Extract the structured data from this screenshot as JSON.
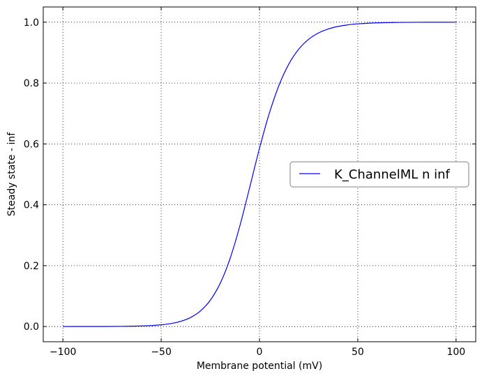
{
  "chart_data": {
    "type": "line",
    "title": "",
    "xlabel": "Membrane potential (mV)",
    "ylabel": "Steady state - inf",
    "xlim": [
      -110,
      110
    ],
    "ylim": [
      -0.05,
      1.05
    ],
    "xticks": [
      -100,
      -50,
      0,
      50,
      100
    ],
    "xtick_labels": [
      "−100",
      "−50",
      "0",
      "50",
      "100"
    ],
    "yticks": [
      0.0,
      0.2,
      0.4,
      0.6,
      0.8,
      1.0
    ],
    "ytick_labels": [
      "0.0",
      "0.2",
      "0.4",
      "0.6",
      "0.8",
      "1.0"
    ],
    "grid": true,
    "legend_position": "center-right",
    "series": [
      {
        "name": "K_ChannelML n inf",
        "color": "#0000ff",
        "x": [
          -100,
          -90,
          -80,
          -70,
          -60,
          -50,
          -45,
          -40,
          -35,
          -30,
          -25,
          -20,
          -15,
          -10,
          -5,
          0,
          5,
          10,
          15,
          20,
          25,
          30,
          35,
          40,
          45,
          50,
          60,
          70,
          80,
          90,
          100
        ],
        "y": [
          0.0,
          0.0001,
          0.0002,
          0.0006,
          0.0018,
          0.0056,
          0.0098,
          0.0171,
          0.0298,
          0.0513,
          0.0866,
          0.1418,
          0.2227,
          0.3304,
          0.4568,
          0.5856,
          0.7006,
          0.7939,
          0.8634,
          0.9116,
          0.9438,
          0.9646,
          0.9778,
          0.9861,
          0.9913,
          0.9946,
          0.9979,
          0.9992,
          0.9997,
          0.9999,
          1.0
        ]
      }
    ]
  }
}
